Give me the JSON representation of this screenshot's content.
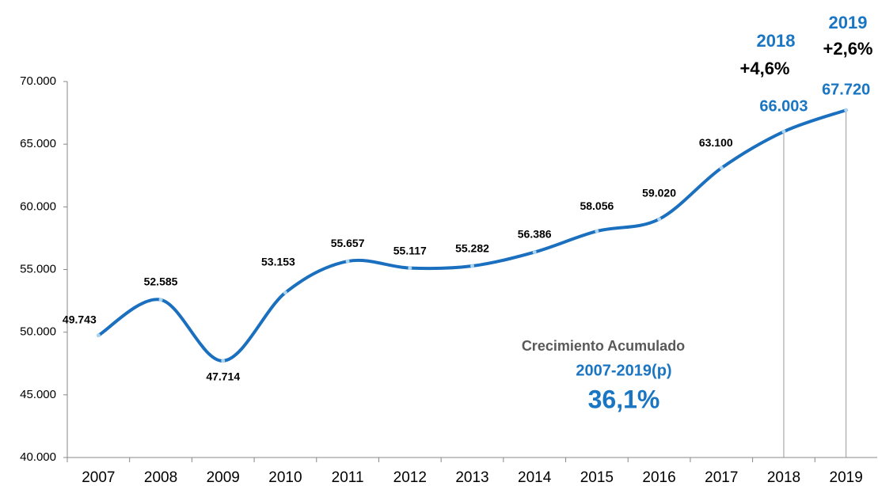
{
  "chart_data": {
    "type": "line",
    "categories": [
      "2007",
      "2008",
      "2009",
      "2010",
      "2011",
      "2012",
      "2013",
      "2014",
      "2015",
      "2016",
      "2017",
      "2018",
      "2019"
    ],
    "series": [
      {
        "color": "#1a6fbe",
        "values": [
          49743,
          52585,
          47714,
          53153,
          55657,
          55117,
          55282,
          56386,
          58056,
          59020,
          63100,
          66003,
          67720
        ],
        "value_labels": [
          "49.743",
          "52.585",
          "47.714",
          "53.153",
          "55.657",
          "55.117",
          "55.282",
          "56.386",
          "58.056",
          "59.020",
          "63.100",
          "66.003",
          "67.720"
        ]
      }
    ],
    "ylim": [
      40000,
      70000
    ],
    "yticks": [
      {
        "value": 40000,
        "label": "40.000"
      },
      {
        "value": 45000,
        "label": "45.000"
      },
      {
        "value": 50000,
        "label": "50.000"
      },
      {
        "value": 55000,
        "label": "55.000"
      },
      {
        "value": 60000,
        "label": "60.000"
      },
      {
        "value": 65000,
        "label": "65.000"
      },
      {
        "value": 70000,
        "label": "70.000"
      }
    ],
    "annotations": [
      "2018",
      "+4,6%",
      "2019",
      "+2,6%",
      "Crecimiento Acumulado",
      "2007-2019(p)",
      "36,1%"
    ]
  }
}
